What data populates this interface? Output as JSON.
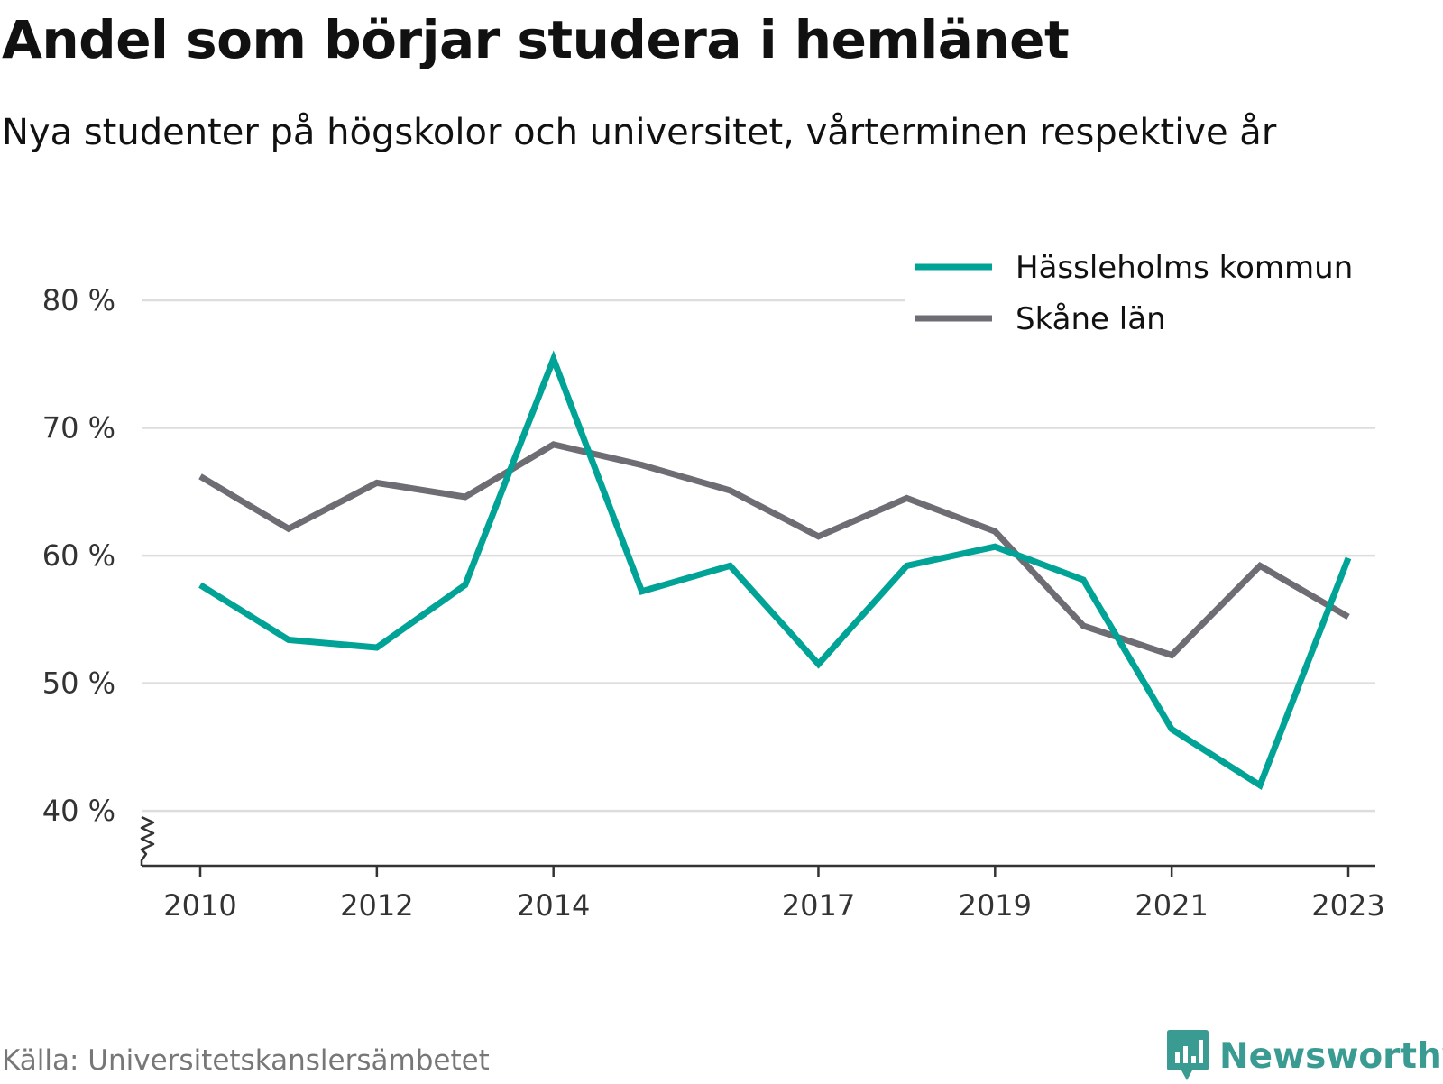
{
  "header": {
    "title": "Andel som börjar studera i hemlänet",
    "subtitle": "Nya studenter på högskolor och universitet, vårterminen respektive år"
  },
  "footer": {
    "source": "Källa: Universitetskanslersämbetet",
    "logo_text": "Newsworthy",
    "logo_icon": "bar-chart-speech-bubble-icon"
  },
  "colors": {
    "hassleholm": "#00a396",
    "skane": "#6e6d73",
    "gridline": "#dddddd",
    "axis": "#333333",
    "logo": "#3a9b92"
  },
  "chart_data": {
    "type": "line",
    "title": "Andel som börjar studera i hemlänet",
    "subtitle": "Nya studenter på högskolor och universitet, vårterminen respektive år",
    "x": [
      2010,
      2011,
      2012,
      2013,
      2014,
      2015,
      2016,
      2017,
      2018,
      2019,
      2020,
      2021,
      2022,
      2023
    ],
    "x_ticks": [
      2010,
      2012,
      2014,
      2017,
      2019,
      2021,
      2023
    ],
    "y_ticks": [
      40,
      50,
      60,
      70,
      80
    ],
    "y_tick_labels": [
      "40 %",
      "50 %",
      "60 %",
      "70 %",
      "80 %"
    ],
    "ylim": [
      35.7,
      80
    ],
    "y_axis_break": true,
    "grid": true,
    "legend_position": "top-right",
    "series": [
      {
        "name": "Hässleholms kommun",
        "color": "#00a396",
        "values": [
          57.7,
          53.4,
          52.8,
          57.7,
          75.4,
          57.2,
          59.2,
          51.5,
          59.2,
          60.7,
          58.1,
          46.4,
          42.0,
          59.8
        ]
      },
      {
        "name": "Skåne län",
        "color": "#6e6d73",
        "values": [
          66.2,
          62.1,
          65.7,
          64.6,
          68.7,
          67.1,
          65.1,
          61.5,
          64.5,
          61.9,
          54.5,
          52.2,
          59.2,
          55.2
        ]
      }
    ]
  }
}
